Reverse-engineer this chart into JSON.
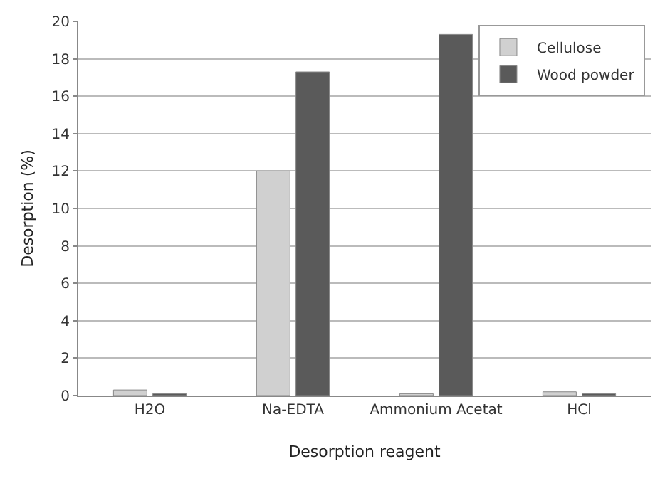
{
  "chart_data": {
    "type": "bar",
    "xlabel": "Desorption reagent",
    "ylabel": "Desorption (%)",
    "categories": [
      "H2O",
      "Na-EDTA",
      "Ammonium Acetat",
      "HCl"
    ],
    "series": [
      {
        "name": "Cellulose",
        "color": "#d0d0d0",
        "values": [
          0.3,
          12,
          0.1,
          0.2
        ]
      },
      {
        "name": "Wood powder",
        "color": "#5a5a5a",
        "values": [
          0.1,
          17.3,
          19.3,
          0.1
        ]
      }
    ],
    "ylim": [
      0,
      20
    ],
    "yticks": [
      0,
      2,
      4,
      6,
      8,
      10,
      12,
      14,
      16,
      18,
      20
    ],
    "grid": "y",
    "legend": "top right"
  }
}
